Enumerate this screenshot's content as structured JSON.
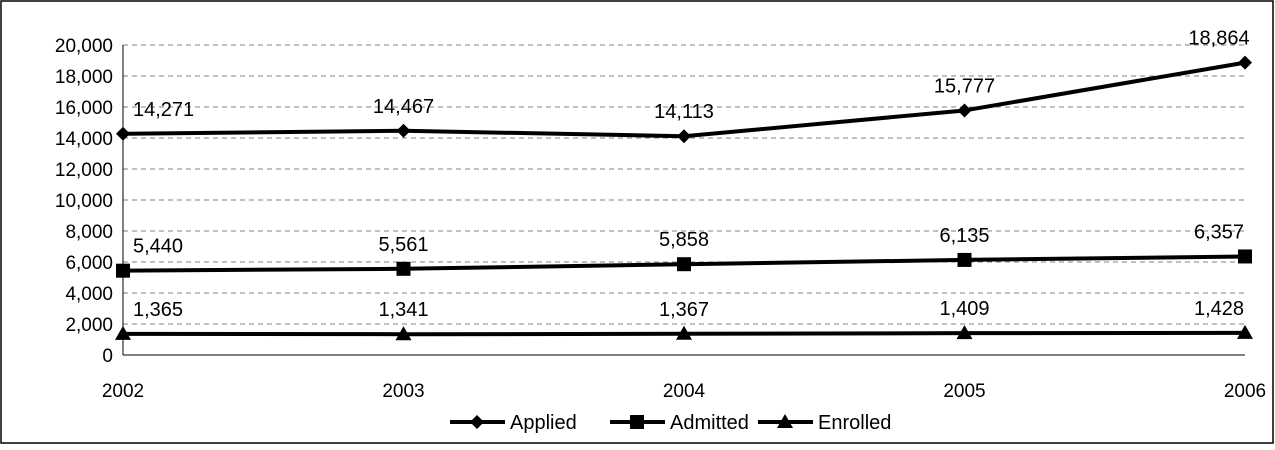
{
  "chart_data": {
    "type": "line",
    "categories": [
      "2002",
      "2003",
      "2004",
      "2005",
      "2006"
    ],
    "series": [
      {
        "name": "Applied",
        "marker": "diamond",
        "values": [
          14271,
          14467,
          14113,
          15777,
          18864
        ],
        "labels": [
          "14,271",
          "14,467",
          "14,113",
          "15,777",
          "18,864"
        ]
      },
      {
        "name": "Admitted",
        "marker": "square",
        "values": [
          5440,
          5561,
          5858,
          6135,
          6357
        ],
        "labels": [
          "5,440",
          "5,561",
          "5,858",
          "6,135",
          "6,357"
        ]
      },
      {
        "name": "Enrolled",
        "marker": "triangle",
        "values": [
          1365,
          1341,
          1367,
          1409,
          1428
        ],
        "labels": [
          "1,365",
          "1,341",
          "1,367",
          "1,409",
          "1,428"
        ]
      }
    ],
    "yticks": [
      0,
      2000,
      4000,
      6000,
      8000,
      10000,
      12000,
      14000,
      16000,
      18000,
      20000
    ],
    "ytick_labels": [
      "0",
      "2,000",
      "4,000",
      "6,000",
      "8,000",
      "10,000",
      "12,000",
      "14,000",
      "16,000",
      "18,000",
      "20,000"
    ],
    "ylim": [
      0,
      20000
    ],
    "grid": "horizontal-dashed",
    "legend_position": "bottom",
    "line_color": "#000000",
    "grid_color": "#808080"
  }
}
